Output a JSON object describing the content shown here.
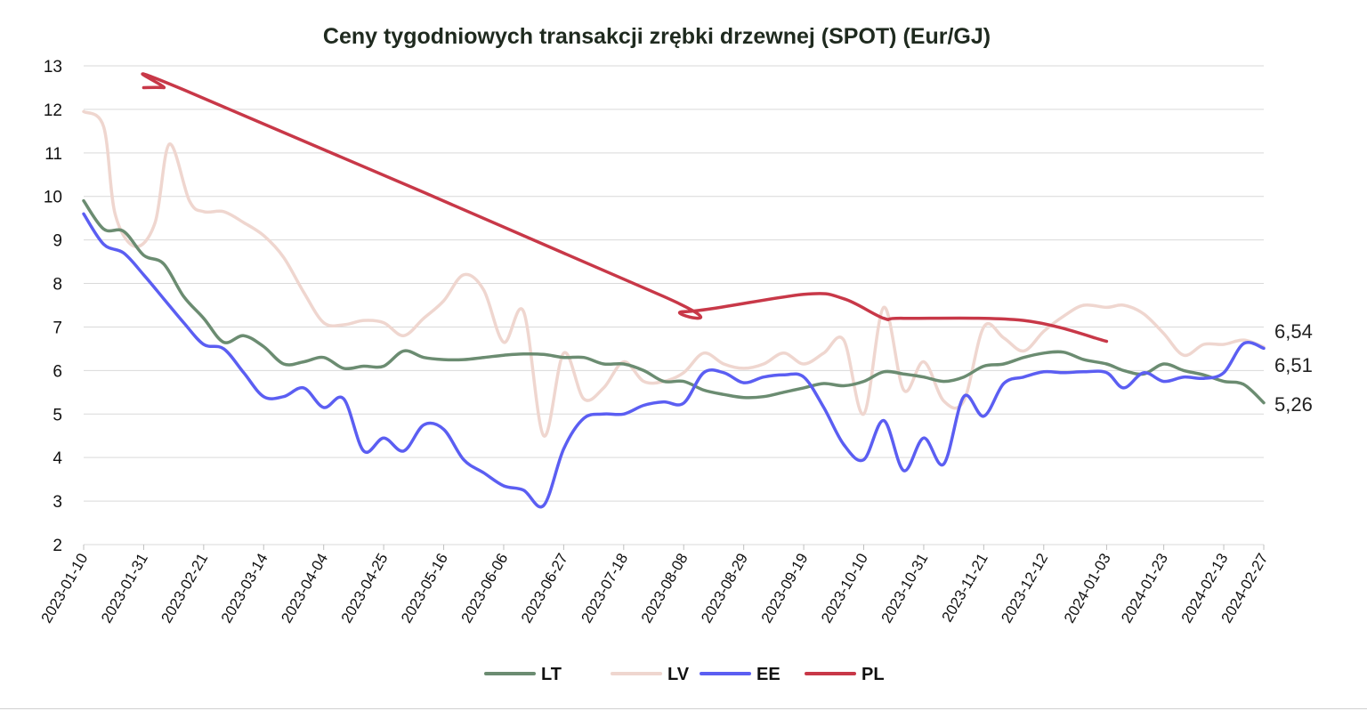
{
  "chart_data": {
    "type": "line",
    "title": "Ceny tygodniowych transakcji zrębki drzewnej (SPOT) (Eur/GJ)",
    "xlabel": "",
    "ylabel": "",
    "ylim": [
      2,
      13
    ],
    "yticks": [
      "2",
      "3",
      "4",
      "5",
      "6",
      "7",
      "8",
      "9",
      "10",
      "11",
      "12",
      "13"
    ],
    "x_range": [
      "2023-01-10",
      "2024-02-27"
    ],
    "xtick_labels": [
      "2023-01-10",
      "2023-01-31",
      "2023-02-21",
      "2023-03-14",
      "2023-04-04",
      "2023-04-25",
      "2023-05-16",
      "2023-06-06",
      "2023-06-27",
      "2023-07-18",
      "2023-08-08",
      "2023-08-29",
      "2023-09-19",
      "2023-10-10",
      "2023-10-31",
      "2023-11-21",
      "2023-12-12",
      "2024-01-03",
      "2024-01-23",
      "2024-02-13",
      "2024-02-27"
    ],
    "grid": true,
    "legend_position": "bottom",
    "end_labels": [
      "6,54",
      "6,51",
      "5,26"
    ],
    "series": [
      {
        "name": "LT",
        "color": "#6b8c71",
        "points": [
          [
            "2023-01-10",
            9.9
          ],
          [
            "2023-01-17",
            9.25
          ],
          [
            "2023-01-24",
            9.2
          ],
          [
            "2023-01-31",
            8.65
          ],
          [
            "2023-02-07",
            8.45
          ],
          [
            "2023-02-14",
            7.7
          ],
          [
            "2023-02-21",
            7.2
          ],
          [
            "2023-02-28",
            6.65
          ],
          [
            "2023-03-07",
            6.8
          ],
          [
            "2023-03-14",
            6.55
          ],
          [
            "2023-03-21",
            6.15
          ],
          [
            "2023-03-28",
            6.2
          ],
          [
            "2023-04-04",
            6.3
          ],
          [
            "2023-04-11",
            6.05
          ],
          [
            "2023-04-18",
            6.1
          ],
          [
            "2023-04-25",
            6.1
          ],
          [
            "2023-05-02",
            6.45
          ],
          [
            "2023-05-09",
            6.3
          ],
          [
            "2023-05-16",
            6.25
          ],
          [
            "2023-05-23",
            6.25
          ],
          [
            "2023-05-30",
            6.3
          ],
          [
            "2023-06-06",
            6.35
          ],
          [
            "2023-06-13",
            6.38
          ],
          [
            "2023-06-20",
            6.37
          ],
          [
            "2023-06-27",
            6.3
          ],
          [
            "2023-07-04",
            6.3
          ],
          [
            "2023-07-11",
            6.15
          ],
          [
            "2023-07-18",
            6.15
          ],
          [
            "2023-07-25",
            6.0
          ],
          [
            "2023-08-01",
            5.75
          ],
          [
            "2023-08-08",
            5.75
          ],
          [
            "2023-08-15",
            5.55
          ],
          [
            "2023-08-22",
            5.45
          ],
          [
            "2023-08-29",
            5.38
          ],
          [
            "2023-09-05",
            5.4
          ],
          [
            "2023-09-12",
            5.5
          ],
          [
            "2023-09-19",
            5.6
          ],
          [
            "2023-09-26",
            5.7
          ],
          [
            "2023-10-03",
            5.65
          ],
          [
            "2023-10-10",
            5.75
          ],
          [
            "2023-10-17",
            5.97
          ],
          [
            "2023-10-24",
            5.92
          ],
          [
            "2023-10-31",
            5.85
          ],
          [
            "2023-11-07",
            5.75
          ],
          [
            "2023-11-14",
            5.85
          ],
          [
            "2023-11-21",
            6.1
          ],
          [
            "2023-11-28",
            6.15
          ],
          [
            "2023-12-05",
            6.3
          ],
          [
            "2023-12-12",
            6.4
          ],
          [
            "2023-12-19",
            6.42
          ],
          [
            "2023-12-26",
            6.25
          ],
          [
            "2024-01-03",
            6.15
          ],
          [
            "2024-01-09",
            6.0
          ],
          [
            "2024-01-16",
            5.92
          ],
          [
            "2024-01-23",
            6.15
          ],
          [
            "2024-01-30",
            6.0
          ],
          [
            "2024-02-06",
            5.9
          ],
          [
            "2024-02-13",
            5.75
          ],
          [
            "2024-02-20",
            5.68
          ],
          [
            "2024-02-27",
            5.26
          ]
        ]
      },
      {
        "name": "LV",
        "color": "#efd6cf",
        "points": [
          [
            "2023-01-10",
            11.95
          ],
          [
            "2023-01-17",
            11.6
          ],
          [
            "2023-01-21",
            9.6
          ],
          [
            "2023-01-28",
            8.85
          ],
          [
            "2023-02-04",
            9.4
          ],
          [
            "2023-02-09",
            11.2
          ],
          [
            "2023-02-16",
            9.9
          ],
          [
            "2023-02-21",
            9.65
          ],
          [
            "2023-02-28",
            9.65
          ],
          [
            "2023-03-07",
            9.4
          ],
          [
            "2023-03-14",
            9.1
          ],
          [
            "2023-03-21",
            8.6
          ],
          [
            "2023-03-28",
            7.8
          ],
          [
            "2023-04-04",
            7.1
          ],
          [
            "2023-04-11",
            7.05
          ],
          [
            "2023-04-18",
            7.15
          ],
          [
            "2023-04-25",
            7.1
          ],
          [
            "2023-05-02",
            6.8
          ],
          [
            "2023-05-09",
            7.2
          ],
          [
            "2023-05-16",
            7.6
          ],
          [
            "2023-05-23",
            8.2
          ],
          [
            "2023-05-30",
            7.85
          ],
          [
            "2023-06-06",
            6.65
          ],
          [
            "2023-06-13",
            7.35
          ],
          [
            "2023-06-20",
            4.5
          ],
          [
            "2023-06-27",
            6.4
          ],
          [
            "2023-07-04",
            5.35
          ],
          [
            "2023-07-11",
            5.6
          ],
          [
            "2023-07-18",
            6.2
          ],
          [
            "2023-07-25",
            5.75
          ],
          [
            "2023-08-01",
            5.75
          ],
          [
            "2023-08-08",
            5.95
          ],
          [
            "2023-08-15",
            6.4
          ],
          [
            "2023-08-22",
            6.15
          ],
          [
            "2023-08-29",
            6.05
          ],
          [
            "2023-09-05",
            6.15
          ],
          [
            "2023-09-12",
            6.4
          ],
          [
            "2023-09-19",
            6.15
          ],
          [
            "2023-09-26",
            6.4
          ],
          [
            "2023-10-03",
            6.7
          ],
          [
            "2023-10-10",
            5.0
          ],
          [
            "2023-10-17",
            7.45
          ],
          [
            "2023-10-24",
            5.55
          ],
          [
            "2023-10-31",
            6.2
          ],
          [
            "2023-11-07",
            5.3
          ],
          [
            "2023-11-14",
            5.3
          ],
          [
            "2023-11-21",
            7.0
          ],
          [
            "2023-11-28",
            6.75
          ],
          [
            "2023-12-05",
            6.45
          ],
          [
            "2023-12-12",
            6.9
          ],
          [
            "2023-12-19",
            7.25
          ],
          [
            "2023-12-26",
            7.5
          ],
          [
            "2024-01-03",
            7.45
          ],
          [
            "2024-01-09",
            7.5
          ],
          [
            "2024-01-16",
            7.3
          ],
          [
            "2024-01-23",
            6.85
          ],
          [
            "2024-01-30",
            6.35
          ],
          [
            "2024-02-06",
            6.6
          ],
          [
            "2024-02-13",
            6.6
          ],
          [
            "2024-02-20",
            6.7
          ],
          [
            "2024-02-27",
            6.54
          ]
        ]
      },
      {
        "name": "EE",
        "color": "#5b5ef2",
        "points": [
          [
            "2023-01-10",
            9.6
          ],
          [
            "2023-01-17",
            8.9
          ],
          [
            "2023-01-24",
            8.7
          ],
          [
            "2023-01-31",
            8.2
          ],
          [
            "2023-02-07",
            7.65
          ],
          [
            "2023-02-14",
            7.1
          ],
          [
            "2023-02-21",
            6.6
          ],
          [
            "2023-02-28",
            6.5
          ],
          [
            "2023-03-07",
            5.95
          ],
          [
            "2023-03-14",
            5.4
          ],
          [
            "2023-03-21",
            5.4
          ],
          [
            "2023-03-28",
            5.6
          ],
          [
            "2023-04-04",
            5.15
          ],
          [
            "2023-04-11",
            5.35
          ],
          [
            "2023-04-18",
            4.15
          ],
          [
            "2023-04-25",
            4.45
          ],
          [
            "2023-05-02",
            4.15
          ],
          [
            "2023-05-09",
            4.75
          ],
          [
            "2023-05-16",
            4.65
          ],
          [
            "2023-05-23",
            3.95
          ],
          [
            "2023-05-30",
            3.65
          ],
          [
            "2023-06-06",
            3.35
          ],
          [
            "2023-06-13",
            3.25
          ],
          [
            "2023-06-20",
            2.9
          ],
          [
            "2023-06-27",
            4.2
          ],
          [
            "2023-07-04",
            4.9
          ],
          [
            "2023-07-11",
            5.0
          ],
          [
            "2023-07-18",
            5.0
          ],
          [
            "2023-07-25",
            5.2
          ],
          [
            "2023-08-01",
            5.28
          ],
          [
            "2023-08-08",
            5.25
          ],
          [
            "2023-08-15",
            5.95
          ],
          [
            "2023-08-22",
            5.95
          ],
          [
            "2023-08-29",
            5.72
          ],
          [
            "2023-09-05",
            5.85
          ],
          [
            "2023-09-12",
            5.9
          ],
          [
            "2023-09-19",
            5.85
          ],
          [
            "2023-09-26",
            5.15
          ],
          [
            "2023-10-03",
            4.3
          ],
          [
            "2023-10-10",
            3.95
          ],
          [
            "2023-10-17",
            4.85
          ],
          [
            "2023-10-24",
            3.7
          ],
          [
            "2023-10-31",
            4.45
          ],
          [
            "2023-11-07",
            3.85
          ],
          [
            "2023-11-14",
            5.4
          ],
          [
            "2023-11-21",
            4.95
          ],
          [
            "2023-11-28",
            5.7
          ],
          [
            "2023-12-05",
            5.85
          ],
          [
            "2023-12-12",
            5.97
          ],
          [
            "2023-12-19",
            5.95
          ],
          [
            "2023-12-26",
            5.97
          ],
          [
            "2024-01-03",
            5.95
          ],
          [
            "2024-01-09",
            5.6
          ],
          [
            "2024-01-16",
            5.95
          ],
          [
            "2024-01-23",
            5.75
          ],
          [
            "2024-01-30",
            5.85
          ],
          [
            "2024-02-06",
            5.82
          ],
          [
            "2024-02-13",
            5.95
          ],
          [
            "2024-02-20",
            6.62
          ],
          [
            "2024-02-27",
            6.51
          ]
        ]
      },
      {
        "name": "PL",
        "color": "#c83848",
        "points": [
          [
            "2023-01-31",
            12.5
          ],
          [
            "2023-02-07",
            12.5
          ],
          [
            "2023-02-14",
            12.45
          ],
          [
            "2023-08-01",
            7.7
          ],
          [
            "2023-08-08",
            7.35
          ],
          [
            "2023-09-19",
            7.75
          ],
          [
            "2023-10-03",
            7.65
          ],
          [
            "2023-10-17",
            7.2
          ],
          [
            "2023-10-24",
            7.2
          ],
          [
            "2023-12-05",
            7.15
          ],
          [
            "2024-01-03",
            6.67
          ]
        ]
      }
    ]
  }
}
